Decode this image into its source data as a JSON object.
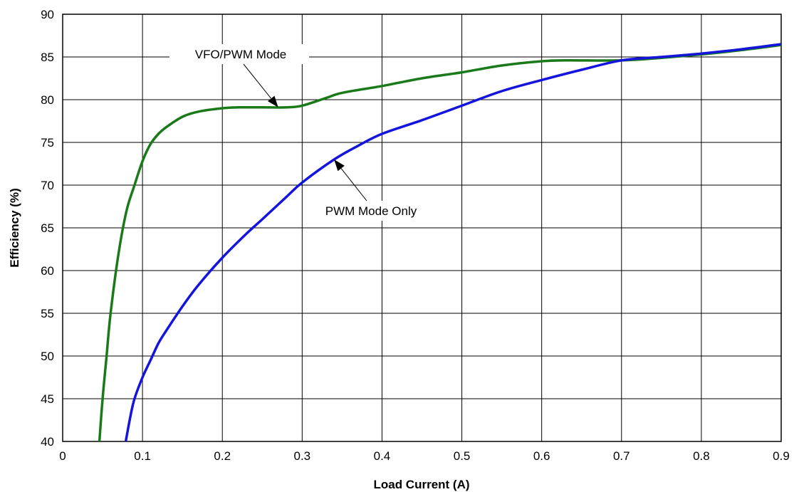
{
  "chart_data": {
    "type": "line",
    "title": "",
    "xlabel": "Load Current (A)",
    "ylabel": "Efficiency (%)",
    "xlim": [
      0,
      0.9
    ],
    "ylim": [
      40,
      90
    ],
    "xticks": [
      0,
      0.1,
      0.2,
      0.3,
      0.4,
      0.5,
      0.6,
      0.7,
      0.8,
      0.9
    ],
    "xtick_labels": [
      "0",
      "0.1",
      "0.2",
      "0.3",
      "0.4",
      "0.5",
      "0.6",
      "0.7",
      "0.8",
      "0.9"
    ],
    "yticks": [
      40,
      45,
      50,
      55,
      60,
      65,
      70,
      75,
      80,
      85,
      90
    ],
    "ytick_labels": [
      "40",
      "45",
      "50",
      "55",
      "60",
      "65",
      "70",
      "75",
      "80",
      "85",
      "90"
    ],
    "grid": true,
    "legend": "none",
    "series": [
      {
        "name": "VFO/PWM Mode",
        "color": "#1a7a1a",
        "x": [
          0.046,
          0.05,
          0.055,
          0.06,
          0.07,
          0.08,
          0.09,
          0.1,
          0.11,
          0.12,
          0.13,
          0.15,
          0.17,
          0.2,
          0.22,
          0.25,
          0.28,
          0.3,
          0.33,
          0.35,
          0.4,
          0.45,
          0.5,
          0.55,
          0.6,
          0.63,
          0.7,
          0.75,
          0.8,
          0.85,
          0.9
        ],
        "y": [
          40,
          45,
          50,
          55,
          62,
          67,
          70,
          72.8,
          74.8,
          76,
          76.8,
          78,
          78.6,
          79,
          79.1,
          79.1,
          79.1,
          79.3,
          80.2,
          80.8,
          81.6,
          82.5,
          83.2,
          84,
          84.5,
          84.6,
          84.6,
          84.9,
          85.3,
          85.8,
          86.4
        ]
      },
      {
        "name": "PWM Mode Only",
        "color": "#1414dc",
        "x": [
          0.079,
          0.085,
          0.09,
          0.1,
          0.11,
          0.12,
          0.13,
          0.15,
          0.17,
          0.2,
          0.23,
          0.25,
          0.28,
          0.3,
          0.34,
          0.37,
          0.4,
          0.45,
          0.5,
          0.55,
          0.6,
          0.65,
          0.7,
          0.75,
          0.8,
          0.85,
          0.9
        ],
        "y": [
          40,
          43,
          45,
          47.5,
          49.5,
          51.5,
          53,
          55.8,
          58.3,
          61.5,
          64.3,
          66,
          68.6,
          70.3,
          73,
          74.6,
          76,
          77.6,
          79.3,
          81,
          82.3,
          83.5,
          84.6,
          85,
          85.4,
          85.9,
          86.5
        ]
      }
    ],
    "annotations": [
      {
        "text": "VFO/PWM Mode",
        "series": "VFO/PWM Mode",
        "x": 0.27,
        "y": 79.1
      },
      {
        "text": "PWM Mode Only",
        "series": "PWM Mode Only",
        "x": 0.34,
        "y": 73
      }
    ]
  }
}
